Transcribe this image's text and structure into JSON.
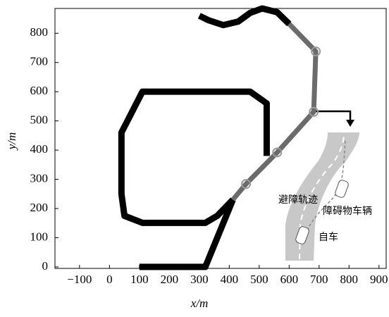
{
  "chart_data": {
    "type": "line",
    "xlabel": "x/m",
    "ylabel": "y/m",
    "xlim": [
      -182,
      924
    ],
    "ylim": [
      -5,
      885
    ],
    "xticks": [
      {
        "value": -100,
        "label": "−100"
      },
      0,
      100,
      200,
      300,
      400,
      500,
      600,
      700,
      800,
      900
    ],
    "yticks": [
      0,
      100,
      200,
      300,
      400,
      500,
      600,
      700,
      800
    ],
    "series": [
      {
        "color": "#000000",
        "width": 9,
        "x": [
          100,
          320,
          412,
          null,
          600,
          560,
          510,
          470,
          430,
          380,
          330,
          300,
          null,
          412,
          360,
          320,
          110,
          50,
          40,
          40,
          110,
          470,
          525,
          525
        ],
        "values": [
          0,
          0,
          230,
          null,
          832,
          872,
          885,
          870,
          840,
          828,
          845,
          860,
          null,
          230,
          175,
          151,
          151,
          175,
          250,
          460,
          600,
          600,
          560,
          380
        ]
      },
      {
        "color": "#6b6b6b",
        "width": 7,
        "x": [
          412,
          456,
          560,
          682,
          689,
          600
        ],
        "values": [
          230,
          284,
          392,
          531,
          738,
          832
        ]
      },
      {
        "color": "#9a9a9a",
        "style": "markers",
        "x": [
          456,
          560,
          682,
          689
        ],
        "values": [
          284,
          392,
          531,
          738
        ]
      }
    ],
    "annotations": [
      "避障轨迹",
      "障碍物车辆",
      "自车"
    ]
  }
}
